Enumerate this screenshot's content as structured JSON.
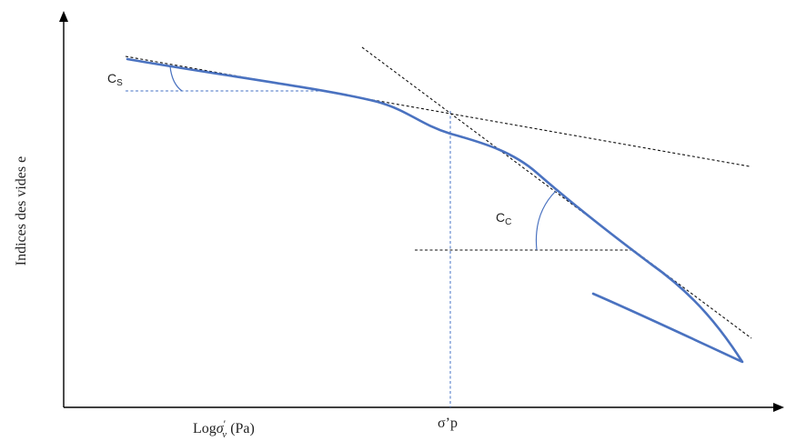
{
  "diagram": {
    "y_axis_label": "Indices des vides e",
    "x_axis_label": {
      "prefix": "Log",
      "sigma": "σ",
      "prime": "′",
      "subscript": "v",
      "unit": " (Pa)"
    },
    "preconsolidation_label": "σ’p",
    "cs_label": {
      "main": "C",
      "sub": "S"
    },
    "cc_label": {
      "main": "C",
      "sub": "C"
    },
    "colors": {
      "curve": "#4a72c0",
      "guide_blue": "#4472c4",
      "tangent": "#111111",
      "axis": "#000000"
    }
  }
}
